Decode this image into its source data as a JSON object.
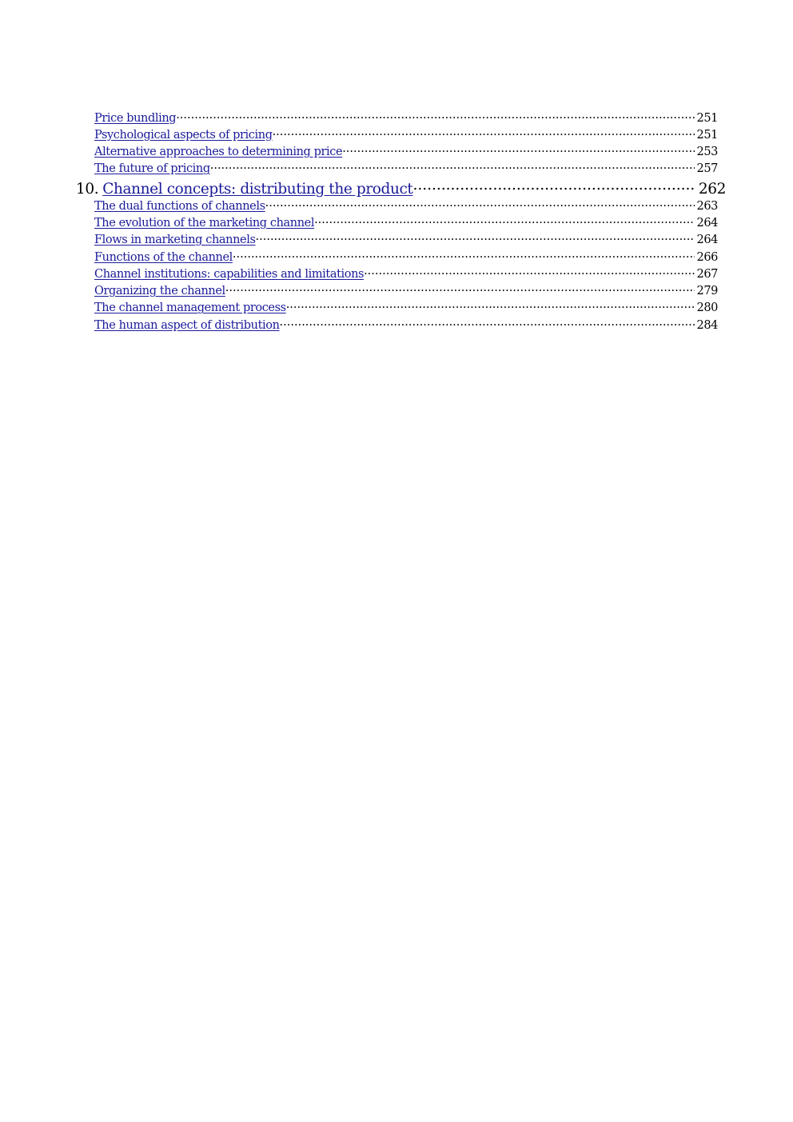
{
  "entries": [
    {
      "title": "Price bundling",
      "page": "251"
    },
    {
      "title": "Psychological aspects of pricing",
      "page": "251"
    },
    {
      "title": "Alternative approaches to determining price",
      "page": "253"
    },
    {
      "title": "The future of pricing",
      "page": "257"
    }
  ],
  "chapter": {
    "number": "10.",
    "title": "Channel concepts: distributing the product",
    "page": "262"
  },
  "chapter_entries": [
    {
      "title": "The dual functions of channels",
      "page": "263"
    },
    {
      "title": "The evolution of the marketing channel",
      "page": "264"
    },
    {
      "title": "Flows in marketing channels",
      "page": "264"
    },
    {
      "title": "Functions of the channel",
      "page": "266"
    },
    {
      "title": "Channel institutions: capabilities and limitations",
      "page": "267"
    },
    {
      "title": "Organizing the channel",
      "page": "279"
    },
    {
      "title": "The channel management process",
      "page": "280"
    },
    {
      "title": "The human aspect of distribution",
      "page": "284"
    }
  ],
  "colors": {
    "link": "#1a1a9a",
    "text": "#000000"
  }
}
